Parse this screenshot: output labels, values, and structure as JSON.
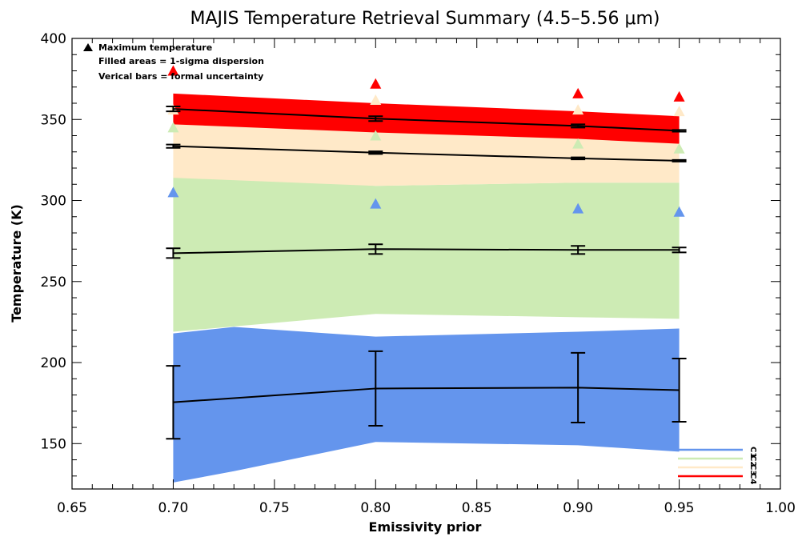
{
  "chart_data": {
    "type": "area",
    "title": "MAJIS Temperature Retrieval Summary (4.5–5.56 μm)",
    "xlabel": "Emissivity prior",
    "ylabel": "Temperature (K)",
    "xlim": [
      0.65,
      1.0
    ],
    "ylim": [
      122,
      400
    ],
    "xticks": [
      0.65,
      0.7,
      0.75,
      0.8,
      0.85,
      0.9,
      0.95,
      1.0
    ],
    "xtick_labels": [
      "0.65",
      "0.70",
      "0.75",
      "0.80",
      "0.85",
      "0.90",
      "0.95",
      "1.00"
    ],
    "yticks": [
      150,
      200,
      250,
      300,
      350,
      400
    ],
    "ytick_labels": [
      "150",
      "200",
      "250",
      "300",
      "350",
      "400"
    ],
    "grid": false,
    "x": [
      0.7,
      0.8,
      0.9,
      0.95
    ],
    "series": [
      {
        "name": "C1",
        "color": "#6495ED",
        "mean": [
          175.5,
          184,
          184.5,
          183
        ],
        "err": [
          22.5,
          23,
          21.5,
          19.5
        ],
        "band_x": [
          0.7,
          0.73,
          0.8,
          0.9,
          0.95
        ],
        "band_upper": [
          218,
          222,
          216,
          219,
          221
        ],
        "band_lower": [
          126,
          133,
          151,
          149,
          145
        ],
        "max": [
          305,
          298,
          295,
          293
        ]
      },
      {
        "name": "C2",
        "color": "#CDEBB4",
        "mean": [
          267.5,
          270,
          269.5,
          269.5
        ],
        "err": [
          3,
          3,
          2.5,
          1.5
        ],
        "band_upper": [
          318,
          309,
          311,
          311
        ],
        "band_lower": [
          219,
          230,
          228,
          227
        ],
        "max": [
          345,
          340,
          335,
          332
        ]
      },
      {
        "name": "C3",
        "color": "#FFE9C8",
        "mean": [
          333.5,
          329.5,
          326,
          324.5
        ],
        "err": [
          1,
          0.8,
          0.6,
          0.5
        ],
        "band_upper": [
          353,
          346,
          340,
          337
        ],
        "band_lower": [
          314,
          309,
          311,
          311
        ],
        "max": [
          356,
          362,
          356,
          355
        ]
      },
      {
        "name": "C4",
        "color": "#FF0000",
        "mean": [
          356.5,
          350.5,
          346,
          343
        ],
        "err": [
          1.5,
          1.5,
          1,
          0.5
        ],
        "band_upper": [
          366,
          360,
          355,
          352
        ],
        "band_lower": [
          347,
          342,
          338,
          335
        ],
        "max": [
          380,
          372,
          366,
          364
        ]
      }
    ],
    "annotations": [
      "Maximum temperature",
      "Filled areas = 1-sigma dispersion",
      "Verical bars = formal uncertainty"
    ],
    "legend_position": "bottom-right"
  }
}
